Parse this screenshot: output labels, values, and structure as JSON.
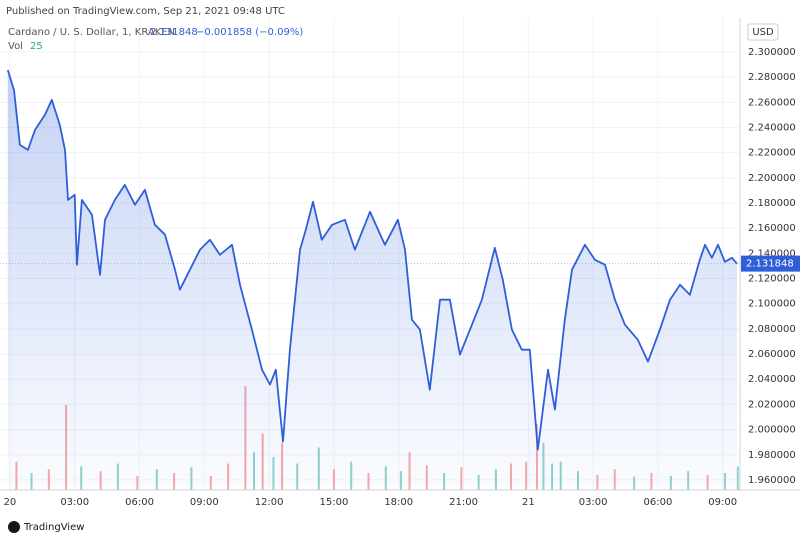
{
  "header": {
    "published": "Published on TradingView.com, Sep 21, 2021 09:48 UTC",
    "footer": "TradingView"
  },
  "chart_data": {
    "type": "area",
    "series": [
      {
        "name": "Cardano / U. S. Dollar, 1, KRAKEN",
        "color": "#2f5fd8",
        "x": [
          -0.1,
          0.19,
          0.46,
          0.83,
          1.16,
          1.62,
          1.94,
          2.31,
          2.55,
          2.69,
          3.0,
          3.1,
          3.33,
          3.8,
          4.17,
          4.4,
          4.86,
          5.32,
          5.79,
          6.25,
          6.71,
          7.18,
          7.64,
          7.87,
          8.33,
          8.8,
          9.26,
          9.72,
          10.28,
          10.65,
          11.2,
          11.67,
          12.04,
          12.31,
          12.64,
          12.96,
          13.43,
          13.7,
          14.03,
          14.44,
          14.91,
          15.51,
          15.97,
          16.67,
          17.36,
          17.96,
          18.29,
          18.61,
          18.98,
          19.44,
          19.91,
          20.37,
          20.83,
          21.3,
          21.85,
          22.45,
          22.82,
          23.24,
          23.7,
          24.07,
          24.44,
          24.91,
          25.23,
          25.69,
          26.02,
          26.62,
          27.08,
          27.55,
          28.01,
          28.47,
          29.07,
          29.54,
          30.09,
          30.56,
          31.02,
          31.48,
          31.94,
          32.18,
          32.5,
          32.78,
          33.1,
          33.43,
          33.66
        ],
        "values": [
          2.2857,
          2.2698,
          2.2262,
          2.2222,
          2.2381,
          2.25,
          2.2619,
          2.2421,
          2.2222,
          2.1825,
          2.1865,
          2.131,
          2.1825,
          2.1706,
          2.123,
          2.1667,
          2.1825,
          2.1944,
          2.1786,
          2.1905,
          2.1627,
          2.1548,
          2.127,
          2.1111,
          2.127,
          2.1429,
          2.1508,
          2.1389,
          2.1468,
          2.1151,
          2.0794,
          2.0476,
          2.0357,
          2.0476,
          1.9905,
          2.0635,
          2.1429,
          2.1587,
          2.181,
          2.1508,
          2.1627,
          2.1667,
          2.1429,
          2.173,
          2.1468,
          2.1667,
          2.1429,
          2.0873,
          2.0794,
          2.0317,
          2.1032,
          2.1032,
          2.0595,
          2.0794,
          2.1032,
          2.1444,
          2.119,
          2.0794,
          2.0635,
          2.0635,
          1.9841,
          2.0476,
          2.0159,
          2.0873,
          2.127,
          2.1468,
          2.1349,
          2.131,
          2.1032,
          2.0833,
          2.0714,
          2.054,
          2.0794,
          2.1032,
          2.1151,
          2.1071,
          2.1349,
          2.1468,
          2.1365,
          2.1468,
          2.1333,
          2.1365,
          2.1318
        ]
      }
    ],
    "last_price": 2.131848,
    "change": "−0.001858 (−0.09%)",
    "currency": "USD",
    "volume": {
      "name": "Vol",
      "last": 25,
      "x": [
        0.3,
        1.0,
        1.8,
        2.6,
        3.3,
        4.2,
        5.0,
        5.9,
        6.8,
        7.6,
        8.4,
        9.3,
        10.1,
        10.9,
        11.3,
        11.7,
        12.2,
        12.6,
        13.3,
        14.3,
        15.0,
        15.8,
        16.6,
        17.4,
        18.1,
        18.5,
        19.3,
        20.1,
        20.9,
        21.7,
        22.5,
        23.2,
        23.9,
        24.4,
        24.7,
        25.1,
        25.5,
        26.3,
        27.2,
        28.0,
        28.9,
        29.7,
        30.6,
        31.4,
        32.3,
        33.1,
        33.7
      ],
      "values": [
        30,
        18,
        22,
        90,
        25,
        20,
        28,
        15,
        22,
        18,
        24,
        15,
        28,
        110,
        40,
        60,
        35,
        50,
        28,
        45,
        22,
        30,
        18,
        25,
        20,
        40,
        26,
        18,
        24,
        16,
        22,
        28,
        30,
        70,
        50,
        28,
        30,
        20,
        16,
        22,
        14,
        18,
        15,
        20,
        16,
        18,
        25
      ],
      "colors": [
        "#ef535080",
        "#26a69a80",
        "#ef535080",
        "#ef535080",
        "#26a69a80",
        "#ef535080",
        "#26a69a80",
        "#ef535080",
        "#26a69a80",
        "#ef535080",
        "#26a69a80",
        "#ef535080",
        "#ef535080",
        "#ef535080",
        "#26a69a80",
        "#ef535080",
        "#26a69a80",
        "#ef535080",
        "#26a69a80",
        "#26a69a80",
        "#ef535080",
        "#26a69a80",
        "#ef535080",
        "#26a69a80",
        "#26a69a80",
        "#ef535080",
        "#ef535080",
        "#26a69a80",
        "#ef535080",
        "#26a69a80",
        "#26a69a80",
        "#ef535080",
        "#ef535080",
        "#ef535080",
        "#26a69a80",
        "#26a69a80",
        "#26a69a80",
        "#26a69a80",
        "#ef535080",
        "#ef535080",
        "#26a69a80",
        "#ef535080",
        "#26a69a80",
        "#26a69a80",
        "#ef535080",
        "#26a69a80",
        "#26a69a80"
      ],
      "vlim": [
        0,
        500
      ]
    },
    "xlim": [
      -0.46,
      33.8
    ],
    "xticks": [
      {
        "value": 0,
        "label": "20"
      },
      {
        "value": 3,
        "label": "03:00"
      },
      {
        "value": 6,
        "label": "06:00"
      },
      {
        "value": 9,
        "label": "09:00"
      },
      {
        "value": 12,
        "label": "12:00"
      },
      {
        "value": 15,
        "label": "15:00"
      },
      {
        "value": 18,
        "label": "18:00"
      },
      {
        "value": 21,
        "label": "21:00"
      },
      {
        "value": 24,
        "label": "21"
      },
      {
        "value": 27,
        "label": "03:00"
      },
      {
        "value": 30,
        "label": "06:00"
      },
      {
        "value": 33,
        "label": "09:00"
      }
    ],
    "ylim": [
      1.952,
      2.327
    ],
    "yticks": [
      {
        "value": 1.96,
        "label": "1.960000"
      },
      {
        "value": 1.98,
        "label": "1.980000"
      },
      {
        "value": 2.0,
        "label": "2.000000"
      },
      {
        "value": 2.02,
        "label": "2.020000"
      },
      {
        "value": 2.04,
        "label": "2.040000"
      },
      {
        "value": 2.06,
        "label": "2.060000"
      },
      {
        "value": 2.08,
        "label": "2.080000"
      },
      {
        "value": 2.1,
        "label": "2.100000"
      },
      {
        "value": 2.12,
        "label": "2.120000"
      },
      {
        "value": 2.14,
        "label": "2.140000"
      },
      {
        "value": 2.16,
        "label": "2.160000"
      },
      {
        "value": 2.18,
        "label": "2.180000"
      },
      {
        "value": 2.2,
        "label": "2.200000"
      },
      {
        "value": 2.22,
        "label": "2.220000"
      },
      {
        "value": 2.24,
        "label": "2.240000"
      },
      {
        "value": 2.26,
        "label": "2.260000"
      },
      {
        "value": 2.28,
        "label": "2.280000"
      },
      {
        "value": 2.3,
        "label": "2.300000"
      }
    ],
    "grid": true
  }
}
